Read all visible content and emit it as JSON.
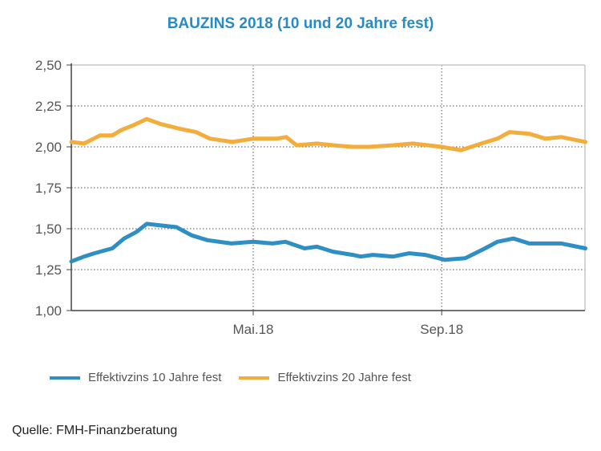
{
  "chart_data": {
    "type": "line",
    "title": "BAUZINS 2018 (10 und 20 Jahre fest)",
    "xlabel": "",
    "ylabel": "",
    "x_unit": "months since Jan 2018",
    "xlim": [
      0,
      10.9
    ],
    "ylim": [
      1.0,
      2.5
    ],
    "yticks": [
      "1,00",
      "1,25",
      "1,50",
      "1,75",
      "2,00",
      "2,25",
      "2,50"
    ],
    "ytick_values": [
      1.0,
      1.25,
      1.5,
      1.75,
      2.0,
      2.25,
      2.5
    ],
    "xticks": [
      "Mai.18",
      "Sep.18"
    ],
    "xtick_values": [
      3.86,
      7.86
    ],
    "grid": true,
    "legend_position": "bottom",
    "series": [
      {
        "name": "Effektivzins 10 Jahre fest",
        "color": "#2f8fc4",
        "x": [
          0,
          0.27,
          0.49,
          0.87,
          1.12,
          1.38,
          1.6,
          1.89,
          2.23,
          2.55,
          2.89,
          3.4,
          3.86,
          4.27,
          4.54,
          4.95,
          5.21,
          5.55,
          5.97,
          6.14,
          6.4,
          6.83,
          7.17,
          7.51,
          7.93,
          8.36,
          8.78,
          9.04,
          9.38,
          9.72,
          10.4,
          10.91
        ],
        "values": [
          1.3,
          1.33,
          1.35,
          1.38,
          1.44,
          1.48,
          1.53,
          1.52,
          1.51,
          1.46,
          1.43,
          1.41,
          1.42,
          1.41,
          1.42,
          1.38,
          1.39,
          1.36,
          1.34,
          1.33,
          1.34,
          1.33,
          1.35,
          1.34,
          1.31,
          1.32,
          1.38,
          1.42,
          1.44,
          1.41,
          1.41,
          1.38
        ]
      },
      {
        "name": "Effektivzins 20 Jahre fest",
        "color": "#f3ad3c",
        "x": [
          0,
          0.27,
          0.61,
          0.87,
          1.04,
          1.3,
          1.6,
          1.89,
          2.31,
          2.65,
          2.94,
          3.42,
          3.86,
          4.36,
          4.56,
          4.78,
          5.21,
          5.55,
          5.97,
          6.31,
          6.83,
          7.25,
          7.86,
          8.27,
          8.7,
          9.04,
          9.3,
          9.72,
          10.06,
          10.4,
          10.91
        ],
        "values": [
          2.03,
          2.02,
          2.07,
          2.07,
          2.1,
          2.13,
          2.17,
          2.14,
          2.11,
          2.09,
          2.05,
          2.03,
          2.05,
          2.05,
          2.06,
          2.01,
          2.02,
          2.01,
          2.0,
          2.0,
          2.01,
          2.02,
          2.0,
          1.98,
          2.02,
          2.05,
          2.09,
          2.08,
          2.05,
          2.06,
          2.03
        ]
      }
    ]
  },
  "footer": {
    "source": "Quelle: FMH-Finanzberatung"
  }
}
